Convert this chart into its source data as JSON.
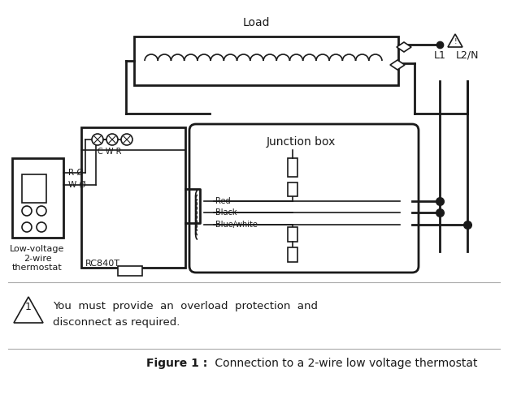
{
  "title_bold": "Figure 1 :",
  "title_rest": " Connection to a 2-wire low voltage thermostat",
  "warning_line1": "You  must  provide  an  overload  protection  and",
  "warning_line2": "disconnect as required.",
  "load_label": "Load",
  "junction_box_label": "Junction box",
  "thermostat_label": "Low-voltage\n2-wire\nthermostat",
  "rc840t_label": "RC840T",
  "l1_label": "L1",
  "l2n_label": "L2/N",
  "cwr_label": "C W R",
  "wire_colors": [
    "Red",
    "Black",
    "Blue/white"
  ],
  "bg_color": "#ffffff",
  "lc": "#1a1a1a",
  "gray": "#777777",
  "lw_main": 2.0,
  "lw_thin": 1.2
}
